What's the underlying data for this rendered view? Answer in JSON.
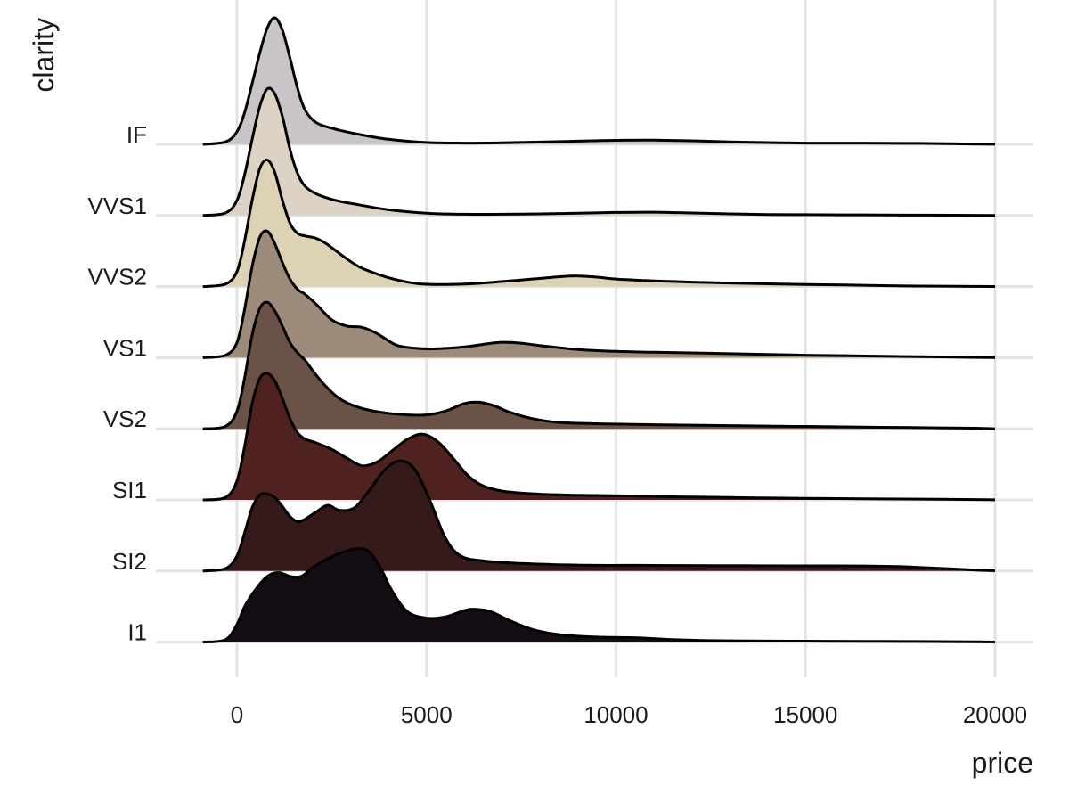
{
  "chart_data": {
    "type": "ridgeline",
    "xlabel": "price",
    "ylabel": "clarity",
    "x_ticks": [
      0,
      5000,
      10000,
      15000,
      20000
    ],
    "x_tick_labels": [
      "0",
      "5000",
      "10000",
      "15000",
      "20000"
    ],
    "xlim": [
      -1000,
      20000
    ],
    "grid": true,
    "legend": "none",
    "series": [
      {
        "name": "IF",
        "color": "#c9c4c8",
        "points": [
          [
            -900,
            0
          ],
          [
            -300,
            0.02
          ],
          [
            0,
            0.1
          ],
          [
            200,
            0.25
          ],
          [
            400,
            0.48
          ],
          [
            600,
            0.72
          ],
          [
            800,
            0.92
          ],
          [
            1000,
            1.0
          ],
          [
            1200,
            0.9
          ],
          [
            1400,
            0.68
          ],
          [
            1600,
            0.44
          ],
          [
            1800,
            0.27
          ],
          [
            2100,
            0.17
          ],
          [
            2600,
            0.12
          ],
          [
            3200,
            0.08
          ],
          [
            4000,
            0.04
          ],
          [
            5000,
            0.015
          ],
          [
            6000,
            0.01
          ],
          [
            7000,
            0.012
          ],
          [
            8000,
            0.018
          ],
          [
            9000,
            0.025
          ],
          [
            10000,
            0.032
          ],
          [
            11000,
            0.033
          ],
          [
            12000,
            0.028
          ],
          [
            13000,
            0.02
          ],
          [
            14000,
            0.014
          ],
          [
            15000,
            0.01
          ],
          [
            16000,
            0.01
          ],
          [
            17000,
            0.009
          ],
          [
            18000,
            0.008
          ],
          [
            19000,
            0.004
          ],
          [
            20000,
            0.001
          ]
        ]
      },
      {
        "name": "VVS1",
        "color": "#ddd3c4",
        "points": [
          [
            -900,
            0
          ],
          [
            -300,
            0.02
          ],
          [
            0,
            0.12
          ],
          [
            200,
            0.32
          ],
          [
            400,
            0.6
          ],
          [
            600,
            0.86
          ],
          [
            800,
            1.0
          ],
          [
            1000,
            0.96
          ],
          [
            1200,
            0.78
          ],
          [
            1400,
            0.52
          ],
          [
            1600,
            0.33
          ],
          [
            1800,
            0.23
          ],
          [
            2100,
            0.17
          ],
          [
            2600,
            0.12
          ],
          [
            3200,
            0.085
          ],
          [
            4000,
            0.045
          ],
          [
            5000,
            0.018
          ],
          [
            6000,
            0.01
          ],
          [
            7000,
            0.01
          ],
          [
            8000,
            0.013
          ],
          [
            9000,
            0.018
          ],
          [
            10000,
            0.024
          ],
          [
            11000,
            0.026
          ],
          [
            12000,
            0.02
          ],
          [
            13000,
            0.013
          ],
          [
            14000,
            0.008
          ],
          [
            15000,
            0.006
          ],
          [
            16000,
            0.005
          ],
          [
            17000,
            0.004
          ],
          [
            18000,
            0.003
          ],
          [
            19000,
            0.002
          ],
          [
            20000,
            0.001
          ]
        ]
      },
      {
        "name": "VVS2",
        "color": "#ddd2b4",
        "points": [
          [
            -900,
            0
          ],
          [
            -300,
            0.02
          ],
          [
            0,
            0.12
          ],
          [
            200,
            0.36
          ],
          [
            400,
            0.68
          ],
          [
            600,
            0.93
          ],
          [
            800,
            1.0
          ],
          [
            1000,
            0.9
          ],
          [
            1200,
            0.68
          ],
          [
            1400,
            0.5
          ],
          [
            1600,
            0.42
          ],
          [
            1800,
            0.4
          ],
          [
            2100,
            0.38
          ],
          [
            2400,
            0.33
          ],
          [
            2800,
            0.24
          ],
          [
            3200,
            0.16
          ],
          [
            3600,
            0.11
          ],
          [
            4000,
            0.07
          ],
          [
            4500,
            0.035
          ],
          [
            5000,
            0.018
          ],
          [
            6000,
            0.02
          ],
          [
            7000,
            0.04
          ],
          [
            8000,
            0.065
          ],
          [
            8600,
            0.08
          ],
          [
            9000,
            0.084
          ],
          [
            9500,
            0.075
          ],
          [
            10000,
            0.06
          ],
          [
            11000,
            0.045
          ],
          [
            12000,
            0.035
          ],
          [
            13000,
            0.028
          ],
          [
            14000,
            0.022
          ],
          [
            15000,
            0.017
          ],
          [
            16000,
            0.013
          ],
          [
            17000,
            0.008
          ],
          [
            18000,
            0.004
          ],
          [
            19000,
            0.002
          ],
          [
            20000,
            0.001
          ]
        ]
      },
      {
        "name": "VS1",
        "color": "#9c8b7a",
        "points": [
          [
            -900,
            0
          ],
          [
            -300,
            0.02
          ],
          [
            0,
            0.12
          ],
          [
            200,
            0.38
          ],
          [
            400,
            0.72
          ],
          [
            600,
            0.95
          ],
          [
            800,
            1.0
          ],
          [
            1000,
            0.9
          ],
          [
            1200,
            0.75
          ],
          [
            1400,
            0.62
          ],
          [
            1600,
            0.54
          ],
          [
            1800,
            0.5
          ],
          [
            2100,
            0.42
          ],
          [
            2500,
            0.3
          ],
          [
            2900,
            0.25
          ],
          [
            3300,
            0.24
          ],
          [
            3700,
            0.19
          ],
          [
            4200,
            0.1
          ],
          [
            4700,
            0.075
          ],
          [
            5200,
            0.07
          ],
          [
            6000,
            0.085
          ],
          [
            6600,
            0.11
          ],
          [
            7000,
            0.122
          ],
          [
            7500,
            0.115
          ],
          [
            8000,
            0.095
          ],
          [
            9000,
            0.065
          ],
          [
            10000,
            0.05
          ],
          [
            11000,
            0.043
          ],
          [
            12000,
            0.038
          ],
          [
            13000,
            0.032
          ],
          [
            14000,
            0.026
          ],
          [
            15000,
            0.02
          ],
          [
            16000,
            0.016
          ],
          [
            17000,
            0.012
          ],
          [
            18000,
            0.008
          ],
          [
            19000,
            0.004
          ],
          [
            20000,
            0.001
          ]
        ]
      },
      {
        "name": "VS2",
        "color": "#6b5247",
        "points": [
          [
            -900,
            0
          ],
          [
            -300,
            0.02
          ],
          [
            0,
            0.14
          ],
          [
            200,
            0.4
          ],
          [
            400,
            0.74
          ],
          [
            600,
            0.95
          ],
          [
            800,
            1.0
          ],
          [
            1000,
            0.93
          ],
          [
            1200,
            0.81
          ],
          [
            1400,
            0.68
          ],
          [
            1600,
            0.6
          ],
          [
            1800,
            0.54
          ],
          [
            2000,
            0.46
          ],
          [
            2300,
            0.35
          ],
          [
            2700,
            0.24
          ],
          [
            3200,
            0.17
          ],
          [
            3800,
            0.13
          ],
          [
            4500,
            0.11
          ],
          [
            5000,
            0.11
          ],
          [
            5500,
            0.14
          ],
          [
            6000,
            0.2
          ],
          [
            6400,
            0.21
          ],
          [
            6800,
            0.18
          ],
          [
            7200,
            0.13
          ],
          [
            7800,
            0.08
          ],
          [
            8500,
            0.05
          ],
          [
            9500,
            0.04
          ],
          [
            10500,
            0.035
          ],
          [
            11500,
            0.03
          ],
          [
            12500,
            0.027
          ],
          [
            13500,
            0.023
          ],
          [
            14500,
            0.02
          ],
          [
            15500,
            0.017
          ],
          [
            16500,
            0.014
          ],
          [
            17500,
            0.011
          ],
          [
            18500,
            0.008
          ],
          [
            19500,
            0.005
          ],
          [
            20000,
            0.001
          ]
        ]
      },
      {
        "name": "SI1",
        "color": "#4f211f",
        "points": [
          [
            -900,
            0
          ],
          [
            -300,
            0.02
          ],
          [
            0,
            0.15
          ],
          [
            200,
            0.42
          ],
          [
            400,
            0.76
          ],
          [
            600,
            0.96
          ],
          [
            800,
            1.0
          ],
          [
            1000,
            0.94
          ],
          [
            1200,
            0.8
          ],
          [
            1400,
            0.64
          ],
          [
            1600,
            0.53
          ],
          [
            1800,
            0.48
          ],
          [
            2100,
            0.45
          ],
          [
            2500,
            0.4
          ],
          [
            2900,
            0.33
          ],
          [
            3300,
            0.27
          ],
          [
            3700,
            0.3
          ],
          [
            4100,
            0.39
          ],
          [
            4500,
            0.48
          ],
          [
            4900,
            0.52
          ],
          [
            5300,
            0.46
          ],
          [
            5700,
            0.33
          ],
          [
            6100,
            0.19
          ],
          [
            6500,
            0.11
          ],
          [
            7000,
            0.07
          ],
          [
            7700,
            0.05
          ],
          [
            8500,
            0.04
          ],
          [
            9500,
            0.035
          ],
          [
            10500,
            0.03
          ],
          [
            11500,
            0.025
          ],
          [
            12500,
            0.021
          ],
          [
            13500,
            0.017
          ],
          [
            14500,
            0.014
          ],
          [
            15500,
            0.011
          ],
          [
            16500,
            0.009
          ],
          [
            17500,
            0.007
          ],
          [
            18500,
            0.005
          ],
          [
            19500,
            0.003
          ],
          [
            20000,
            0.001
          ]
        ]
      },
      {
        "name": "SI2",
        "color": "#36191a",
        "points": [
          [
            -900,
            0
          ],
          [
            -300,
            0.02
          ],
          [
            0,
            0.12
          ],
          [
            200,
            0.3
          ],
          [
            400,
            0.5
          ],
          [
            600,
            0.6
          ],
          [
            800,
            0.61
          ],
          [
            1000,
            0.58
          ],
          [
            1200,
            0.51
          ],
          [
            1400,
            0.43
          ],
          [
            1600,
            0.39
          ],
          [
            1800,
            0.41
          ],
          [
            2100,
            0.47
          ],
          [
            2400,
            0.52
          ],
          [
            2700,
            0.48
          ],
          [
            3100,
            0.5
          ],
          [
            3500,
            0.64
          ],
          [
            3900,
            0.8
          ],
          [
            4300,
            0.87
          ],
          [
            4700,
            0.8
          ],
          [
            5100,
            0.55
          ],
          [
            5500,
            0.26
          ],
          [
            5900,
            0.12
          ],
          [
            6500,
            0.08
          ],
          [
            7500,
            0.06
          ],
          [
            8500,
            0.05
          ],
          [
            9500,
            0.045
          ],
          [
            10500,
            0.045
          ],
          [
            11500,
            0.044
          ],
          [
            12500,
            0.043
          ],
          [
            13500,
            0.042
          ],
          [
            14500,
            0.041
          ],
          [
            15500,
            0.041
          ],
          [
            16500,
            0.04
          ],
          [
            17500,
            0.035
          ],
          [
            18500,
            0.022
          ],
          [
            19500,
            0.008
          ],
          [
            20000,
            0.002
          ]
        ]
      },
      {
        "name": "I1",
        "color": "#150d14",
        "points": [
          [
            -900,
            0
          ],
          [
            -300,
            0.02
          ],
          [
            0,
            0.14
          ],
          [
            200,
            0.28
          ],
          [
            500,
            0.42
          ],
          [
            800,
            0.52
          ],
          [
            1100,
            0.55
          ],
          [
            1400,
            0.52
          ],
          [
            1700,
            0.52
          ],
          [
            2000,
            0.59
          ],
          [
            2400,
            0.66
          ],
          [
            2800,
            0.71
          ],
          [
            3200,
            0.74
          ],
          [
            3500,
            0.71
          ],
          [
            3800,
            0.58
          ],
          [
            4100,
            0.4
          ],
          [
            4500,
            0.24
          ],
          [
            5000,
            0.19
          ],
          [
            5500,
            0.2
          ],
          [
            6000,
            0.25
          ],
          [
            6300,
            0.26
          ],
          [
            6700,
            0.24
          ],
          [
            7200,
            0.17
          ],
          [
            7800,
            0.1
          ],
          [
            8500,
            0.06
          ],
          [
            9500,
            0.04
          ],
          [
            10500,
            0.035
          ],
          [
            11500,
            0.02
          ],
          [
            12500,
            0.012
          ],
          [
            13500,
            0.01
          ],
          [
            14500,
            0.008
          ],
          [
            15500,
            0.007
          ],
          [
            16500,
            0.006
          ],
          [
            17500,
            0.005
          ],
          [
            18500,
            0.004
          ],
          [
            19500,
            0.003
          ],
          [
            20000,
            0.001
          ]
        ]
      }
    ]
  }
}
